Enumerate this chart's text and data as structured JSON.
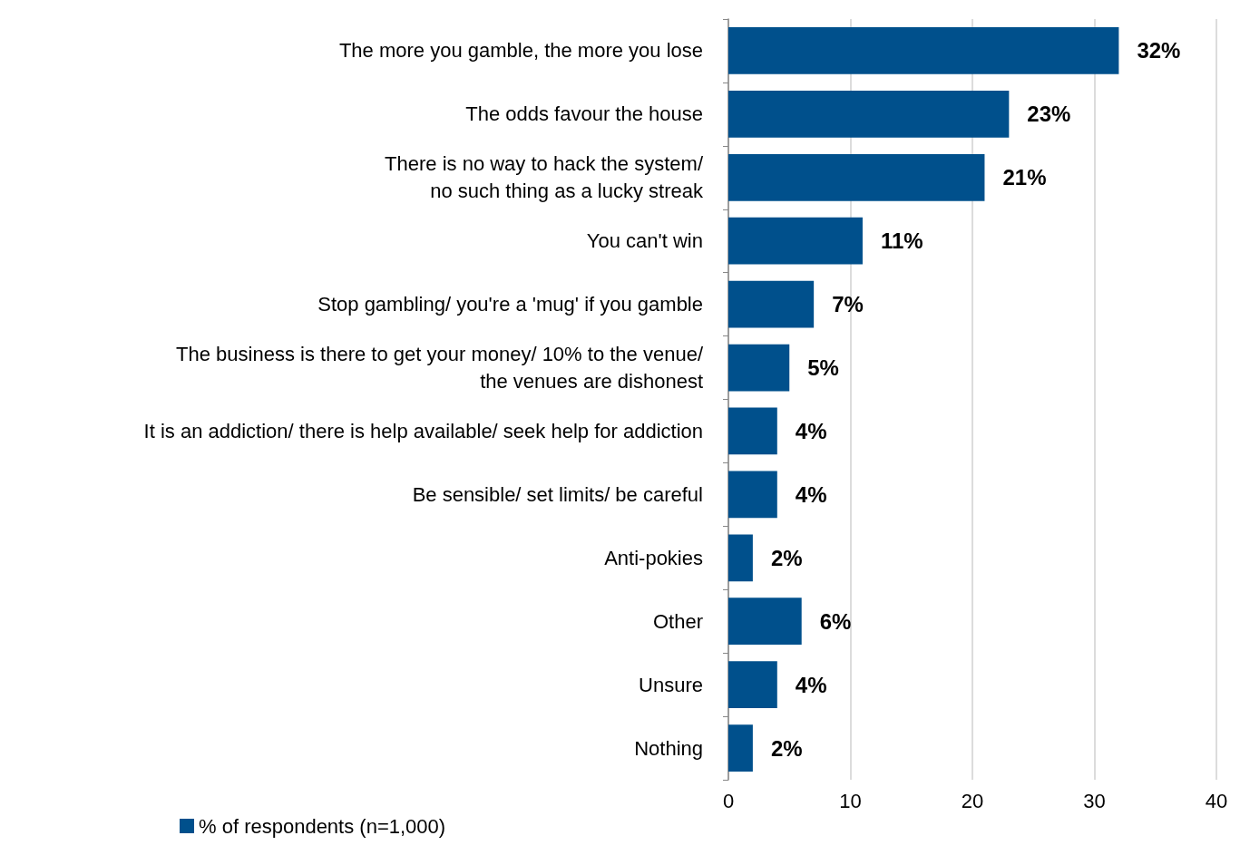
{
  "chart_data": {
    "type": "bar",
    "orientation": "horizontal",
    "categories": [
      "The more you gamble, the more you lose",
      "The odds favour the house",
      "There is no way to hack the system/\nno such thing as a lucky streak",
      "You can't win",
      "Stop gambling/ you're a 'mug' if you gamble",
      "The business is there to get your money/ 10% to the venue/\nthe venues are dishonest",
      "It is an addiction/ there is help available/ seek help for addiction",
      "Be sensible/ set limits/ be careful",
      "Anti-pokies",
      "Other",
      "Unsure",
      "Nothing"
    ],
    "series": [
      {
        "name": "% of respondents (n=1,000)",
        "color": "#00508c",
        "values": [
          32,
          23,
          21,
          11,
          7,
          5,
          4,
          4,
          2,
          6,
          4,
          2
        ],
        "value_labels": [
          "32%",
          "23%",
          "21%",
          "11%",
          "7%",
          "5%",
          "4%",
          "4%",
          "2%",
          "6%",
          "4%",
          "2%"
        ]
      }
    ],
    "xlim": [
      0,
      40
    ],
    "xticks": [
      0,
      10,
      20,
      30,
      40
    ],
    "grid": "x",
    "legend": "bottom left"
  }
}
